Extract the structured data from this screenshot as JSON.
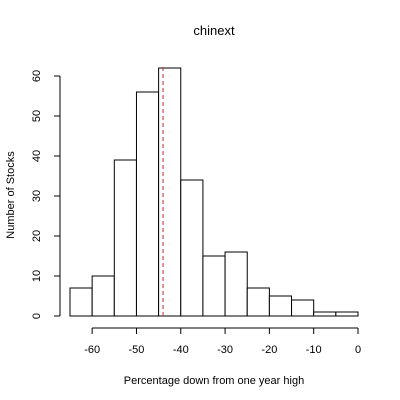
{
  "chart_data": {
    "type": "bar",
    "title": "chinext",
    "xlabel": "Percentage down from one year high",
    "ylabel": "Number of Stocks",
    "xlim": [
      -65,
      0
    ],
    "ylim": [
      0,
      63
    ],
    "bin_width": 5,
    "bins": [
      {
        "x0": -65,
        "x1": -60,
        "count": 7
      },
      {
        "x0": -60,
        "x1": -55,
        "count": 10
      },
      {
        "x0": -55,
        "x1": -50,
        "count": 39
      },
      {
        "x0": -50,
        "x1": -45,
        "count": 56
      },
      {
        "x0": -45,
        "x1": -40,
        "count": 62
      },
      {
        "x0": -40,
        "x1": -35,
        "count": 34
      },
      {
        "x0": -35,
        "x1": -30,
        "count": 15
      },
      {
        "x0": -30,
        "x1": -25,
        "count": 16
      },
      {
        "x0": -25,
        "x1": -20,
        "count": 7
      },
      {
        "x0": -20,
        "x1": -15,
        "count": 5
      },
      {
        "x0": -15,
        "x1": -10,
        "count": 4
      },
      {
        "x0": -10,
        "x1": -5,
        "count": 1
      },
      {
        "x0": -5,
        "x1": 0,
        "count": 1
      }
    ],
    "xticks": [
      -60,
      -50,
      -40,
      -30,
      -20,
      -10,
      0
    ],
    "xtick_labels": [
      "-60",
      "-50",
      "-40",
      "-30",
      "-20",
      "-10",
      "0"
    ],
    "yticks": [
      0,
      10,
      20,
      30,
      40,
      50,
      60
    ],
    "ytick_labels": [
      "0",
      "10",
      "20",
      "30",
      "40",
      "50",
      "60"
    ],
    "reference_line": {
      "x": -44,
      "style": "dashed",
      "color": "#d62728"
    },
    "grid": false,
    "colors": {
      "bar_fill": "#ffffff",
      "bar_stroke": "#000000",
      "reference": "#d62728"
    }
  }
}
